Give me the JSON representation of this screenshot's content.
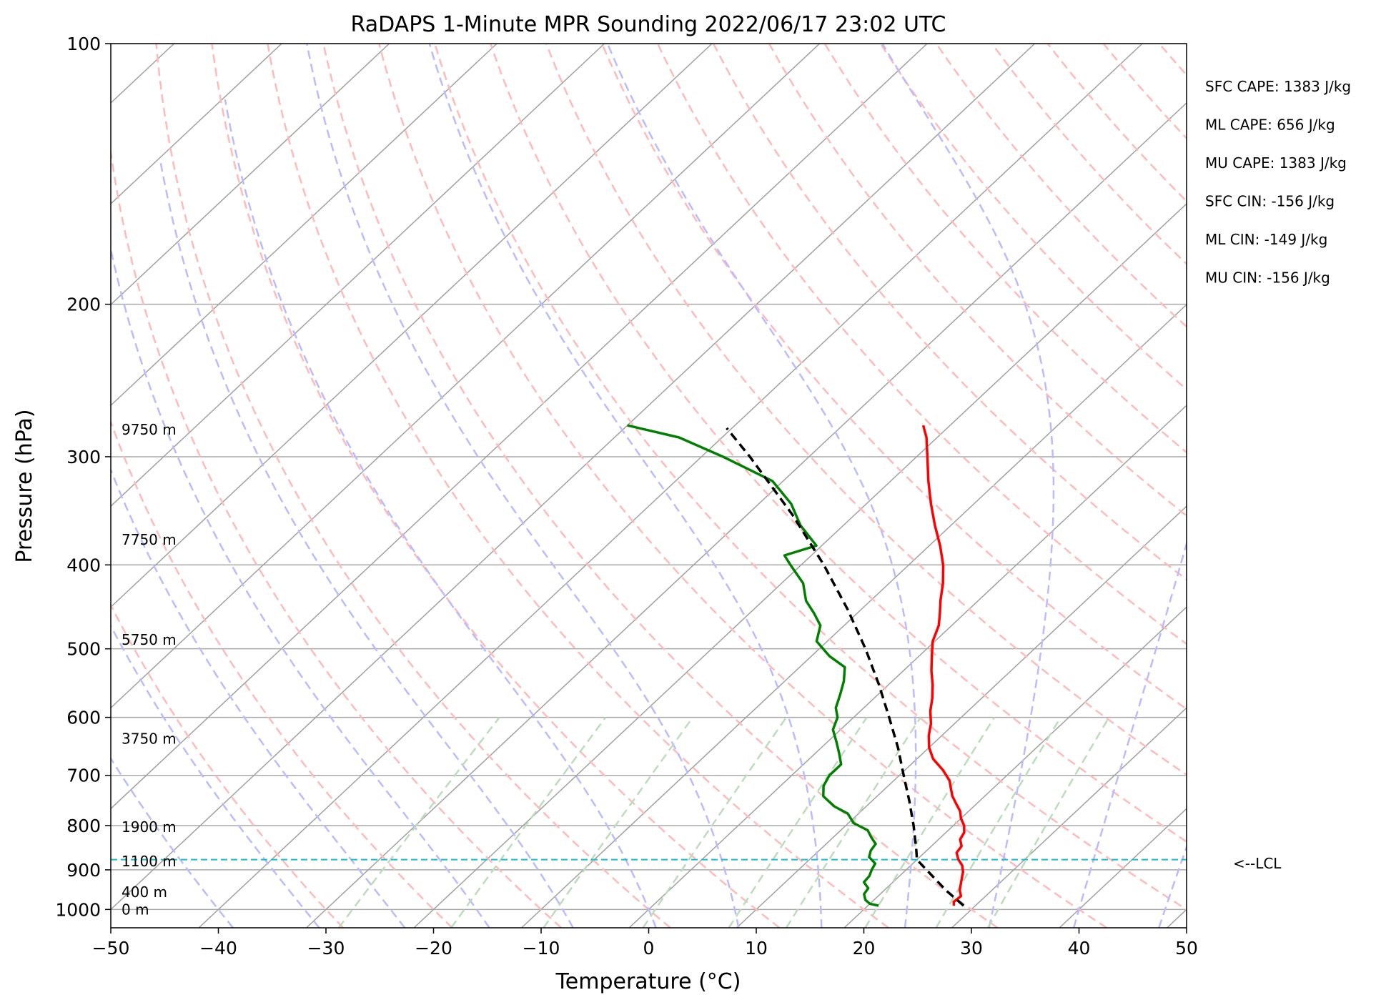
{
  "chart_data": {
    "type": "line",
    "subtype": "skew-t log-p sounding",
    "title": "RaDAPS 1-Minute MPR Sounding 2022/06/17 23:02 UTC",
    "xlabel": "Temperature (°C)",
    "ylabel": "Pressure (hPa)",
    "xlim": [
      -50,
      50
    ],
    "ylim": [
      1050,
      100
    ],
    "y_scale": "log",
    "grid": true,
    "x_ticks": [
      -50,
      -40,
      -30,
      -20,
      -10,
      0,
      10,
      20,
      30,
      40,
      50
    ],
    "x_tick_labels": [
      "−50",
      "−40",
      "−30",
      "−20",
      "−10",
      "0",
      "10",
      "20",
      "30",
      "40",
      "50"
    ],
    "y_ticks": [
      100,
      200,
      300,
      400,
      500,
      600,
      700,
      800,
      900,
      1000
    ],
    "y_tick_labels": [
      "100",
      "200",
      "300",
      "400",
      "500",
      "600",
      "700",
      "800",
      "900",
      "1000"
    ],
    "series": [
      {
        "role": "temperature",
        "color": "#ff0000",
        "p": [
          990,
          980,
          965,
          950,
          935,
          920,
          905,
          890,
          875,
          860,
          845,
          830,
          815,
          800,
          785,
          770,
          755,
          740,
          725,
          710,
          690,
          670,
          650,
          630,
          610,
          590,
          570,
          550,
          530,
          510,
          490,
          470,
          455,
          440,
          420,
          400,
          380,
          360,
          340,
          320,
          300,
          285,
          276
        ],
        "t": [
          28,
          27.6,
          27.7,
          27,
          26.5,
          26,
          25.5,
          24.8,
          23.8,
          23,
          22.8,
          22,
          21.7,
          21,
          20,
          19.2,
          18.1,
          17,
          16.1,
          15.2,
          13.5,
          11.5,
          10,
          8.8,
          7.8,
          6.5,
          5.4,
          4.1,
          2.6,
          1.2,
          -0.2,
          -1.2,
          -2.3,
          -3.5,
          -5,
          -6.8,
          -9,
          -11.5,
          -14,
          -16.5,
          -19,
          -21,
          -22.5
        ]
      },
      {
        "role": "dewpoint",
        "color": "#008000",
        "p": [
          990,
          985,
          975,
          960,
          945,
          930,
          915,
          900,
          885,
          870,
          855,
          840,
          825,
          810,
          795,
          775,
          760,
          740,
          720,
          700,
          680,
          660,
          640,
          620,
          600,
          585,
          565,
          545,
          525,
          510,
          490,
          470,
          455,
          440,
          420,
          400,
          390,
          380,
          360,
          340,
          320,
          300,
          285,
          276
        ],
        "td": [
          21,
          20,
          19.2,
          18.5,
          18.3,
          17.3,
          17.2,
          16.8,
          16.5,
          15.3,
          14.8,
          14.6,
          13.5,
          12.5,
          10.5,
          9,
          7,
          5,
          4,
          3.5,
          3.5,
          2.2,
          0.8,
          -0.7,
          -1.5,
          -2.6,
          -3.5,
          -4.5,
          -5.8,
          -8.3,
          -11,
          -12.2,
          -14,
          -16,
          -18,
          -21,
          -22.5,
          -20.5,
          -24,
          -27,
          -31,
          -38,
          -44,
          -50
        ]
      },
      {
        "role": "parcel profile",
        "color": "#000000",
        "linestyle": "dashed",
        "p": [
          990,
          950,
          900,
          876,
          850,
          800,
          750,
          700,
          650,
          600,
          550,
          500,
          450,
          400,
          350,
          300,
          278
        ],
        "t": [
          28.9,
          25.7,
          21.9,
          20,
          18.8,
          16.3,
          13.5,
          10.4,
          7.1,
          3.3,
          -0.9,
          -5.7,
          -11.3,
          -17.9,
          -25.8,
          -35.5,
          -40.5
        ]
      }
    ],
    "lcl": {
      "p": 876,
      "label": "<--LCL",
      "color": "#17becf"
    },
    "height_labels": [
      {
        "p": 1000,
        "label": "0 m"
      },
      {
        "p": 955,
        "label": "400 m"
      },
      {
        "p": 880,
        "label": "1100 m"
      },
      {
        "p": 803,
        "label": "1900 m"
      },
      {
        "p": 635,
        "label": "3750 m"
      },
      {
        "p": 488,
        "label": "5750 m"
      },
      {
        "p": 374,
        "label": "7750 m"
      },
      {
        "p": 279,
        "label": "9750 m"
      }
    ],
    "annotations": [
      "SFC CAPE: 1383 J/kg",
      "ML CAPE: 656 J/kg",
      "MU CAPE: 1383 J/kg",
      "SFC CIN: -156 J/kg",
      "ML CIN: -149 J/kg",
      "MU CIN: -156 J/kg"
    ],
    "background_lines": {
      "isotherms_color": "#a0a0a0",
      "dry_adiabats_color": "#ffbbbb",
      "moist_adiabats_color": "#bbbbff",
      "mixing_ratio_color": "#bbddbb"
    }
  }
}
